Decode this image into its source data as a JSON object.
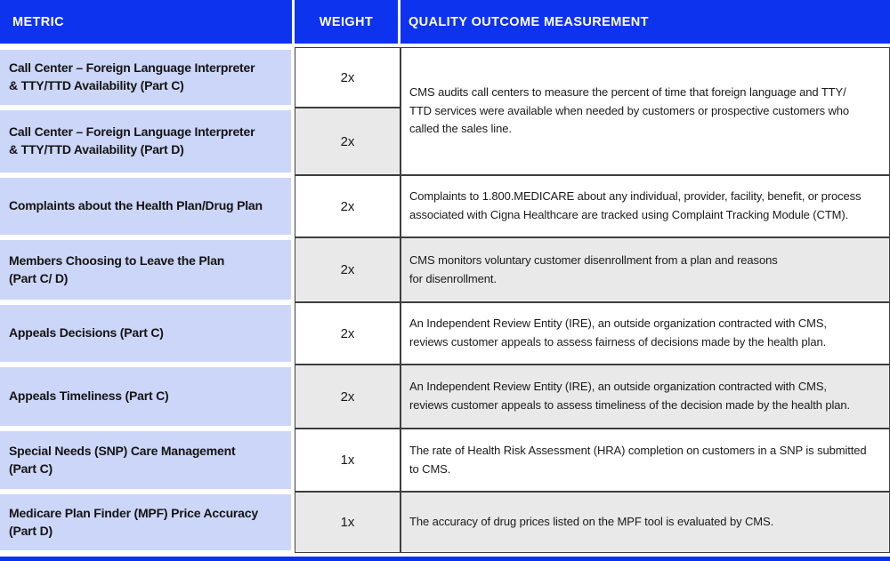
{
  "header": {
    "metric": "METRIC",
    "weight": "WEIGHT",
    "quality": "QUALITY OUTCOME MEASUREMENT"
  },
  "merged_measurement_rows_1_2": "CMS audits call centers to measure the percent of time that foreign language and TTY/\nTTD services were available when needed by customers or prospective customers who\ncalled the sales line.",
  "rows": [
    {
      "metric": "Call Center – Foreign Language Interpreter\n& TTY/TTD Availability (Part C)",
      "weight": "2x"
    },
    {
      "metric": "Call Center – Foreign Language Interpreter\n& TTY/TTD Availability (Part D)",
      "weight": "2x"
    },
    {
      "metric": "Complaints about the Health Plan/Drug Plan",
      "weight": "2x",
      "measurement": "Complaints to 1.800.MEDICARE about any individual, provider, facility, benefit, or process\nassociated with Cigna Healthcare are tracked using Complaint Tracking Module (CTM)."
    },
    {
      "metric": "Members Choosing to Leave the Plan\n(Part C/ D)",
      "weight": "2x",
      "measurement": "CMS monitors voluntary customer disenrollment from a plan and reasons\nfor disenrollment."
    },
    {
      "metric": "Appeals Decisions (Part C)",
      "weight": "2x",
      "measurement": "An Independent Review Entity (IRE), an outside organization contracted with CMS,\nreviews customer appeals to assess fairness of decisions made by the health plan."
    },
    {
      "metric": "Appeals Timeliness (Part C)",
      "weight": "2x",
      "measurement": "An Independent Review Entity (IRE), an outside organization contracted with CMS,\nreviews customer appeals to assess timeliness of the decision made by the health plan."
    },
    {
      "metric": "Special Needs (SNP) Care Management\n(Part C)",
      "weight": "1x",
      "measurement": "The rate of Health Risk Assessment (HRA) completion on customers in a SNP is submitted\nto CMS."
    },
    {
      "metric": "Medicare Plan Finder (MPF) Price Accuracy\n(Part D)",
      "weight": "1x",
      "measurement": "The accuracy of drug prices listed on the MPF tool is evaluated by CMS."
    }
  ],
  "colors": {
    "header_blue": "#0d33ef",
    "bottom_bar_blue": "#0d2ff0",
    "metric_lavender": "#ccd6f8",
    "alt_row_gray": "#e9e9e9",
    "grid_border": "#3e3e3e"
  }
}
